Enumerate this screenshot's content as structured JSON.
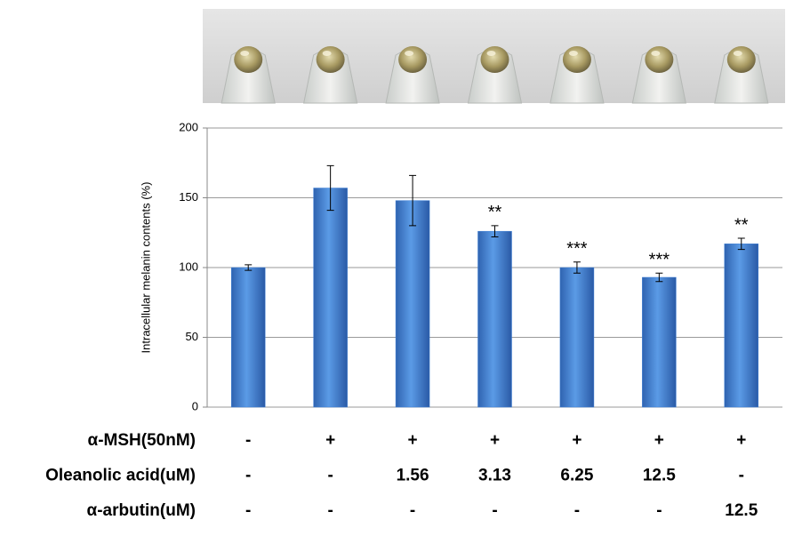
{
  "chart_data": {
    "type": "bar",
    "y_label": "Intracellular melanin contents (%)",
    "values": [
      100,
      157,
      148,
      126,
      100,
      93,
      117
    ],
    "errors": [
      2,
      16,
      18,
      4,
      4,
      3,
      4
    ],
    "annotations": [
      null,
      null,
      null,
      "**",
      "***",
      "***",
      "**"
    ],
    "color": "#3d7fd6",
    "ylim": [
      0,
      200
    ],
    "yticks": [
      0,
      50,
      100,
      150,
      200
    ],
    "grid": true,
    "treatments": [
      {
        "label": "α-MSH(50nM)",
        "values": [
          "-",
          "+",
          "+",
          "+",
          "+",
          "+",
          "+"
        ]
      },
      {
        "label": "Oleanolic acid(uM)",
        "values": [
          "-",
          "-",
          "1.56",
          "3.13",
          "6.25",
          "12.5",
          "-"
        ]
      },
      {
        "label": "α-arbutin(uM)",
        "values": [
          "-",
          "-",
          "-",
          "-",
          "-",
          "-",
          "12.5"
        ]
      }
    ]
  }
}
